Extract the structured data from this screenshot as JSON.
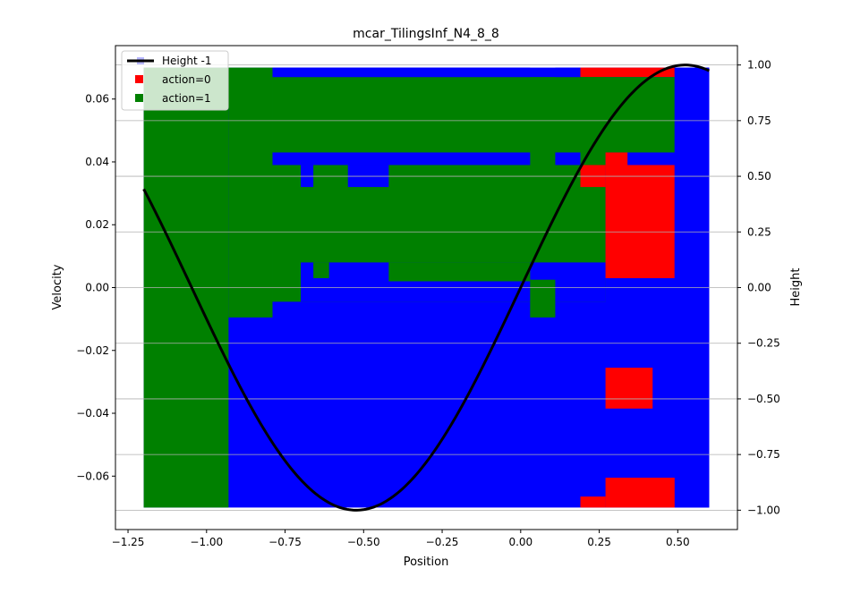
{
  "chart_data": {
    "type": "heatmap",
    "title": "mcar_TilingsInf_N4_8_8",
    "xlabel": "Position",
    "ylabel": "Velocity",
    "y2label": "Height",
    "xlim": [
      -1.29,
      0.69
    ],
    "ylim": [
      -0.077,
      0.077
    ],
    "y2lim": [
      -1.087,
      1.087
    ],
    "xticks": [
      -1.25,
      -1.0,
      -0.75,
      -0.5,
      -0.25,
      0.0,
      0.25,
      0.5
    ],
    "xtick_labels": [
      "−1.25",
      "−1.00",
      "−0.75",
      "−0.50",
      "−0.25",
      "0.00",
      "0.25",
      "0.50"
    ],
    "yticks": [
      -0.06,
      -0.04,
      -0.02,
      0.0,
      0.02,
      0.04,
      0.06
    ],
    "ytick_labels": [
      "−0.06",
      "−0.04",
      "−0.02",
      "0.00",
      "0.02",
      "0.04",
      "0.06"
    ],
    "y2ticks": [
      -1.0,
      -0.75,
      -0.5,
      -0.25,
      0.0,
      0.25,
      0.5,
      0.75,
      1.0
    ],
    "y2tick_labels": [
      "−1.00",
      "−0.75",
      "−0.50",
      "−0.25",
      "0.00",
      "0.25",
      "0.50",
      "0.75",
      "1.00"
    ],
    "grid": "horizontal (right axis)",
    "legend_placement": "top-left",
    "legend": [
      {
        "label": "Height  -1",
        "kind": "line",
        "color": "#000000"
      },
      {
        "label": "action=0",
        "kind": "square",
        "color": "#ff0000"
      },
      {
        "label": "action=1",
        "kind": "square",
        "color": "#008000"
      }
    ],
    "colors": {
      "action_-1": "#0000ff",
      "action_0": "#ff0000",
      "action_1": "#008000",
      "height": "#000000"
    },
    "region_domain": {
      "position": [
        -1.2,
        0.6
      ],
      "velocity": [
        -0.07,
        0.07
      ]
    },
    "background_action": -1,
    "regions": [
      {
        "action": 1,
        "pos": [
          -1.2,
          -0.93
        ],
        "vel": [
          -0.07,
          0.07
        ]
      },
      {
        "action": 1,
        "pos": [
          -0.93,
          -0.79
        ],
        "vel": [
          -0.0095,
          0.07
        ]
      },
      {
        "action": 1,
        "pos": [
          -0.79,
          0.27
        ],
        "vel": [
          -0.0045,
          0.067
        ]
      },
      {
        "action": -1,
        "pos": [
          -0.7,
          0.27
        ],
        "vel": [
          -0.0045,
          0.008
        ]
      },
      {
        "action": 1,
        "pos": [
          -0.66,
          -0.61
        ],
        "vel": [
          0.003,
          0.008
        ]
      },
      {
        "action": 1,
        "pos": [
          -0.42,
          0.03
        ],
        "vel": [
          0.002,
          0.008
        ]
      },
      {
        "action": -1,
        "pos": [
          -0.79,
          0.03
        ],
        "vel": [
          0.039,
          0.043
        ]
      },
      {
        "action": -1,
        "pos": [
          -0.7,
          -0.66
        ],
        "vel": [
          0.032,
          0.039
        ]
      },
      {
        "action": -1,
        "pos": [
          -0.55,
          -0.42
        ],
        "vel": [
          0.032,
          0.039
        ]
      },
      {
        "action": -1,
        "pos": [
          0.11,
          0.19
        ],
        "vel": [
          0.039,
          0.043
        ]
      },
      {
        "action": -1,
        "pos": [
          -0.79,
          0.03
        ],
        "vel": [
          0.067,
          0.07
        ]
      },
      {
        "action": -1,
        "pos": [
          0.11,
          0.19
        ],
        "vel": [
          0.067,
          0.07
        ]
      },
      {
        "action": 1,
        "pos": [
          0.03,
          0.11
        ],
        "vel": [
          -0.0095,
          0.0025
        ]
      },
      {
        "action": 0,
        "pos": [
          0.19,
          0.49
        ],
        "vel": [
          0.067,
          0.07
        ]
      },
      {
        "action": 1,
        "pos": [
          0.19,
          0.49
        ],
        "vel": [
          0.043,
          0.067
        ]
      },
      {
        "action": 0,
        "pos": [
          0.27,
          0.49
        ],
        "vel": [
          0.003,
          0.039
        ]
      },
      {
        "action": 0,
        "pos": [
          0.27,
          0.34
        ],
        "vel": [
          0.039,
          0.043
        ]
      },
      {
        "action": 0,
        "pos": [
          0.19,
          0.27
        ],
        "vel": [
          0.032,
          0.039
        ]
      },
      {
        "action": -1,
        "pos": [
          0.49,
          0.6
        ],
        "vel": [
          -0.07,
          0.07
        ]
      },
      {
        "action": 0,
        "pos": [
          0.27,
          0.42
        ],
        "vel": [
          -0.0385,
          -0.0255
        ]
      },
      {
        "action": 0,
        "pos": [
          0.27,
          0.49
        ],
        "vel": [
          -0.07,
          -0.0605
        ]
      },
      {
        "action": 0,
        "pos": [
          0.19,
          0.27
        ],
        "vel": [
          -0.07,
          -0.0665
        ]
      }
    ],
    "height_curve": {
      "function": "sin(3*position)",
      "x_range": [
        -1.2,
        0.6
      ]
    }
  }
}
